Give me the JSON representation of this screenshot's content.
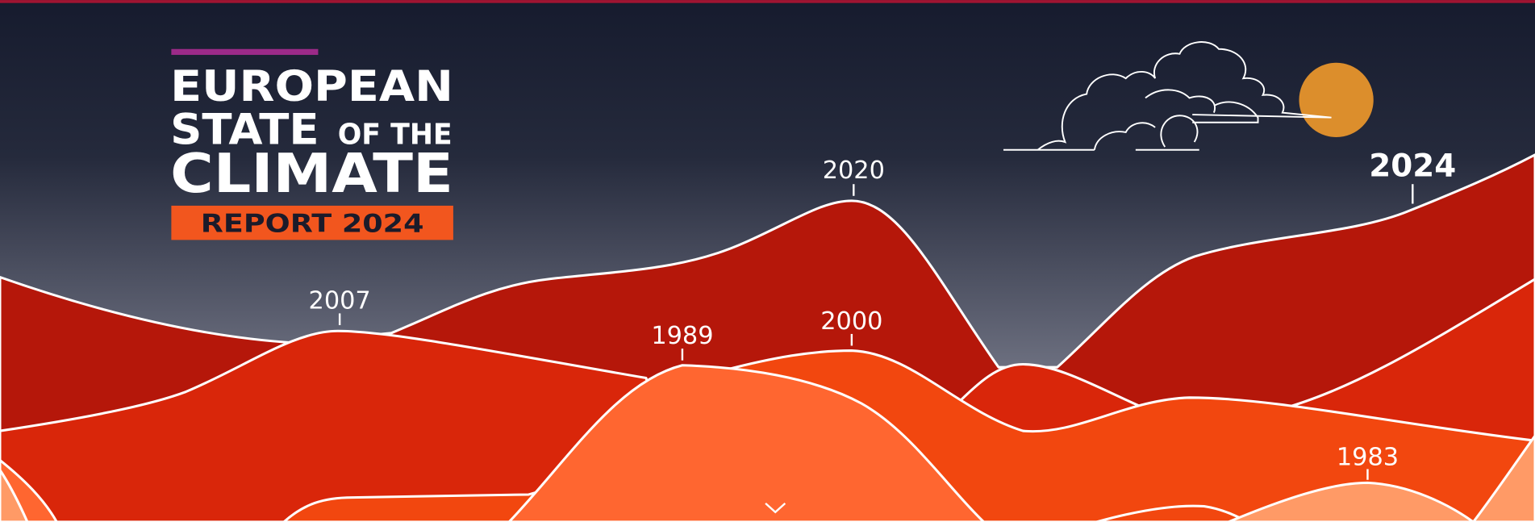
{
  "header": {
    "title": {
      "line1": "EUROPEAN",
      "line2": "STATE",
      "line2_small": "OF THE",
      "line3": "CLIMATE"
    },
    "badge": "REPORT 2024"
  },
  "years": [
    "2020",
    "2007",
    "1989",
    "2000",
    "2024",
    "1983"
  ]
}
